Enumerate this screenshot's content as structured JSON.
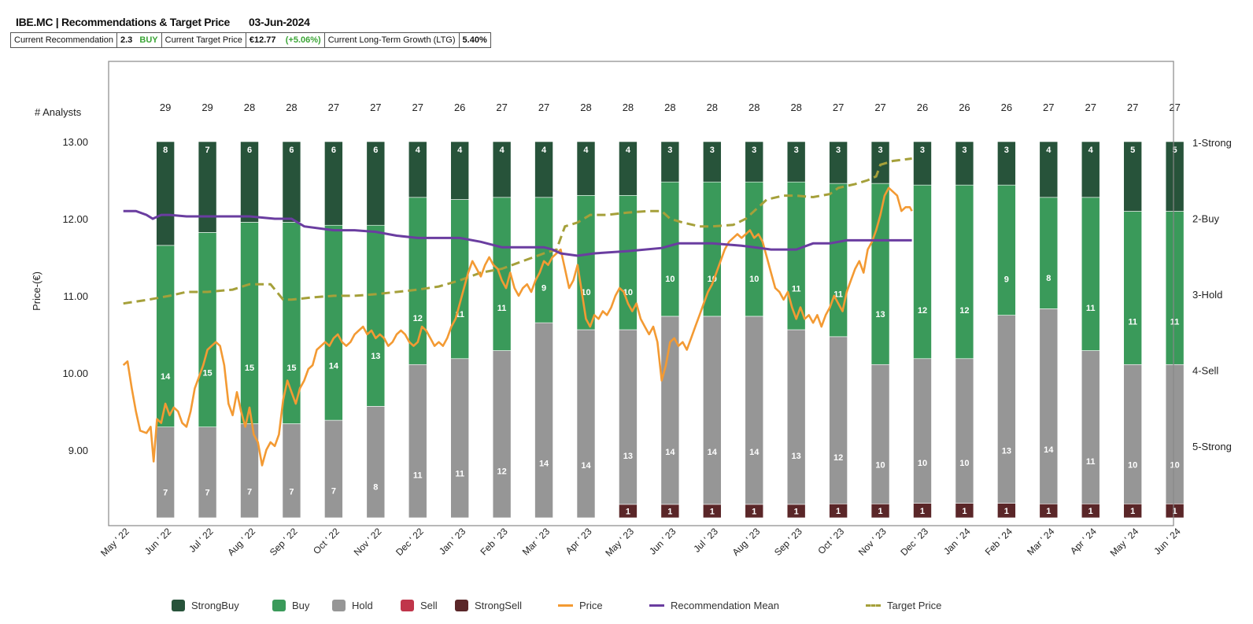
{
  "header": {
    "title": "IBE.MC | Recommendations & Target Price",
    "date": "03-Jun-2024"
  },
  "summary": {
    "rec_label": "Current Recommendation",
    "rec_value": "2.3",
    "rec_text": "BUY",
    "tp_label": "Current Target Price",
    "tp_value": "€12.77",
    "tp_change": "(+5.06%)",
    "ltg_label": "Current Long-Term Growth (LTG)",
    "ltg_value": "5.40%"
  },
  "colors": {
    "strongbuy": "#27533a",
    "buy": "#3a9a5a",
    "hold": "#969696",
    "sell": "#c0354a",
    "strongsell": "#5a2628",
    "price": "#f39a33",
    "mean": "#6a3da0",
    "target": "#a5a03a"
  },
  "legend": [
    {
      "label": "StrongBuy",
      "type": "box",
      "color": "#27533a"
    },
    {
      "label": "Buy",
      "type": "box",
      "color": "#3a9a5a"
    },
    {
      "label": "Hold",
      "type": "box",
      "color": "#969696"
    },
    {
      "label": "Sell",
      "type": "box",
      "color": "#c0354a"
    },
    {
      "label": "StrongSell",
      "type": "box",
      "color": "#5a2628"
    },
    {
      "label": "Price",
      "type": "line",
      "color": "#f39a33"
    },
    {
      "label": "Recommendation Mean",
      "type": "line",
      "color": "#6a3da0"
    },
    {
      "label": "Target Price",
      "type": "dash",
      "color": "#a5a03a"
    }
  ],
  "chart_data": {
    "type": "bar",
    "ylabel": "Price-(€)",
    "analysts_label": "# Analysts",
    "ylim": [
      8.12,
      13.0
    ],
    "y_ticks": [
      "13.00",
      "12.00",
      "11.00",
      "10.00",
      "9.00"
    ],
    "y_tick_values": [
      13,
      12,
      11,
      10,
      9
    ],
    "right_labels": [
      "1-Strong",
      "2-Buy",
      "3-Hold",
      "4-Sell",
      "5-Strong"
    ],
    "x_labels": [
      "May ' 22",
      "Jun ' 22",
      "Jul ' 22",
      "Aug ' 22",
      "Sep ' 22",
      "Oct ' 22",
      "Nov ' 22",
      "Dec ' 22",
      "Jan ' 23",
      "Feb ' 23",
      "Mar ' 23",
      "Apr ' 23",
      "May ' 23",
      "Jun ' 23",
      "Jul ' 23",
      "Aug ' 23",
      "Sep ' 23",
      "Oct ' 23",
      "Nov ' 23",
      "Dec ' 23",
      "Jan ' 24",
      "Feb ' 24",
      "Mar ' 24",
      "Apr ' 24",
      "May ' 24",
      "Jun ' 24"
    ],
    "bars": [
      {
        "analysts": "29",
        "strongbuy": 8,
        "buy": 14,
        "hold": 7,
        "sell": 0,
        "strongsell": 0
      },
      {
        "analysts": "29",
        "strongbuy": 7,
        "buy": 15,
        "hold": 7,
        "sell": 0,
        "strongsell": 0
      },
      {
        "analysts": "28",
        "strongbuy": 6,
        "buy": 15,
        "hold": 7,
        "sell": 0,
        "strongsell": 0
      },
      {
        "analysts": "28",
        "strongbuy": 6,
        "buy": 15,
        "hold": 7,
        "sell": 0,
        "strongsell": 0
      },
      {
        "analysts": "27",
        "strongbuy": 6,
        "buy": 14,
        "hold": 7,
        "sell": 0,
        "strongsell": 0
      },
      {
        "analysts": "27",
        "strongbuy": 6,
        "buy": 13,
        "hold": 8,
        "sell": 0,
        "strongsell": 0
      },
      {
        "analysts": "27",
        "strongbuy": 4,
        "buy": 12,
        "hold": 11,
        "sell": 0,
        "strongsell": 0
      },
      {
        "analysts": "26",
        "strongbuy": 4,
        "buy": 11,
        "hold": 11,
        "sell": 0,
        "strongsell": 0
      },
      {
        "analysts": "27",
        "strongbuy": 4,
        "buy": 11,
        "hold": 12,
        "sell": 0,
        "strongsell": 0
      },
      {
        "analysts": "27",
        "strongbuy": 4,
        "buy": 9,
        "hold": 14,
        "sell": 0,
        "strongsell": 0
      },
      {
        "analysts": "28",
        "strongbuy": 4,
        "buy": 10,
        "hold": 14,
        "sell": 0,
        "strongsell": 0
      },
      {
        "analysts": "28",
        "strongbuy": 4,
        "buy": 10,
        "hold": 13,
        "sell": 0,
        "strongsell": 1
      },
      {
        "analysts": "28",
        "strongbuy": 3,
        "buy": 10,
        "hold": 14,
        "sell": 0,
        "strongsell": 1
      },
      {
        "analysts": "28",
        "strongbuy": 3,
        "buy": 10,
        "hold": 14,
        "sell": 0,
        "strongsell": 1
      },
      {
        "analysts": "28",
        "strongbuy": 3,
        "buy": 10,
        "hold": 14,
        "sell": 0,
        "strongsell": 1
      },
      {
        "analysts": "28",
        "strongbuy": 3,
        "buy": 11,
        "hold": 13,
        "sell": 0,
        "strongsell": 1
      },
      {
        "analysts": "27",
        "strongbuy": 3,
        "buy": 11,
        "hold": 12,
        "sell": 0,
        "strongsell": 1
      },
      {
        "analysts": "27",
        "strongbuy": 3,
        "buy": 13,
        "hold": 10,
        "sell": 0,
        "strongsell": 1
      },
      {
        "analysts": "26",
        "strongbuy": 3,
        "buy": 12,
        "hold": 10,
        "sell": 0,
        "strongsell": 1
      },
      {
        "analysts": "26",
        "strongbuy": 3,
        "buy": 12,
        "hold": 10,
        "sell": 0,
        "strongsell": 1
      },
      {
        "analysts": "26",
        "strongbuy": 3,
        "buy": 9,
        "hold": 13,
        "sell": 0,
        "strongsell": 1
      },
      {
        "analysts": "27",
        "strongbuy": 4,
        "buy": 8,
        "hold": 14,
        "sell": 0,
        "strongsell": 1
      },
      {
        "analysts": "27",
        "strongbuy": 4,
        "buy": 11,
        "hold": 11,
        "sell": 0,
        "strongsell": 1
      },
      {
        "analysts": "27",
        "strongbuy": 5,
        "buy": 11,
        "hold": 10,
        "sell": 0,
        "strongsell": 1
      },
      {
        "analysts": "27",
        "strongbuy": 5,
        "buy": 11,
        "hold": 10,
        "sell": 0,
        "strongsell": 1
      }
    ],
    "price": [
      [
        0,
        10.1
      ],
      [
        0.1,
        10.15
      ],
      [
        0.2,
        9.8
      ],
      [
        0.3,
        9.5
      ],
      [
        0.4,
        9.25
      ],
      [
        0.55,
        9.22
      ],
      [
        0.65,
        9.3
      ],
      [
        0.72,
        8.85
      ],
      [
        0.8,
        9.4
      ],
      [
        0.9,
        9.35
      ],
      [
        1.0,
        9.6
      ],
      [
        1.1,
        9.45
      ],
      [
        1.2,
        9.55
      ],
      [
        1.3,
        9.5
      ],
      [
        1.4,
        9.35
      ],
      [
        1.5,
        9.3
      ],
      [
        1.6,
        9.5
      ],
      [
        1.7,
        9.8
      ],
      [
        1.8,
        9.95
      ],
      [
        1.9,
        10.1
      ],
      [
        2.0,
        10.3
      ],
      [
        2.1,
        10.35
      ],
      [
        2.2,
        10.4
      ],
      [
        2.3,
        10.35
      ],
      [
        2.4,
        10.1
      ],
      [
        2.5,
        9.6
      ],
      [
        2.6,
        9.45
      ],
      [
        2.7,
        9.75
      ],
      [
        2.8,
        9.5
      ],
      [
        2.9,
        9.3
      ],
      [
        3.0,
        9.55
      ],
      [
        3.1,
        9.2
      ],
      [
        3.2,
        9.1
      ],
      [
        3.3,
        8.8
      ],
      [
        3.4,
        9.0
      ],
      [
        3.5,
        9.1
      ],
      [
        3.6,
        9.05
      ],
      [
        3.7,
        9.2
      ],
      [
        3.8,
        9.65
      ],
      [
        3.9,
        9.9
      ],
      [
        4.0,
        9.75
      ],
      [
        4.1,
        9.6
      ],
      [
        4.2,
        9.8
      ],
      [
        4.3,
        9.9
      ],
      [
        4.4,
        10.05
      ],
      [
        4.5,
        10.1
      ],
      [
        4.6,
        10.3
      ],
      [
        4.7,
        10.35
      ],
      [
        4.8,
        10.4
      ],
      [
        4.9,
        10.35
      ],
      [
        5.0,
        10.45
      ],
      [
        5.1,
        10.5
      ],
      [
        5.2,
        10.4
      ],
      [
        5.3,
        10.35
      ],
      [
        5.4,
        10.4
      ],
      [
        5.5,
        10.5
      ],
      [
        5.6,
        10.55
      ],
      [
        5.7,
        10.6
      ],
      [
        5.8,
        10.5
      ],
      [
        5.9,
        10.55
      ],
      [
        6.0,
        10.45
      ],
      [
        6.1,
        10.5
      ],
      [
        6.2,
        10.45
      ],
      [
        6.3,
        10.35
      ],
      [
        6.4,
        10.4
      ],
      [
        6.5,
        10.5
      ],
      [
        6.6,
        10.55
      ],
      [
        6.7,
        10.5
      ],
      [
        6.8,
        10.4
      ],
      [
        6.9,
        10.35
      ],
      [
        7.0,
        10.4
      ],
      [
        7.1,
        10.6
      ],
      [
        7.2,
        10.55
      ],
      [
        7.3,
        10.45
      ],
      [
        7.4,
        10.35
      ],
      [
        7.5,
        10.4
      ],
      [
        7.6,
        10.35
      ],
      [
        7.7,
        10.45
      ],
      [
        7.8,
        10.6
      ],
      [
        7.9,
        10.7
      ],
      [
        8.0,
        10.9
      ],
      [
        8.1,
        11.1
      ],
      [
        8.2,
        11.3
      ],
      [
        8.3,
        11.45
      ],
      [
        8.4,
        11.35
      ],
      [
        8.5,
        11.25
      ],
      [
        8.6,
        11.4
      ],
      [
        8.7,
        11.5
      ],
      [
        8.8,
        11.4
      ],
      [
        8.9,
        11.35
      ],
      [
        9.0,
        11.2
      ],
      [
        9.1,
        11.1
      ],
      [
        9.2,
        11.3
      ],
      [
        9.3,
        11.1
      ],
      [
        9.4,
        11.0
      ],
      [
        9.5,
        11.1
      ],
      [
        9.6,
        11.15
      ],
      [
        9.7,
        11.05
      ],
      [
        9.8,
        11.2
      ],
      [
        9.9,
        11.3
      ],
      [
        10.0,
        11.45
      ],
      [
        10.1,
        11.4
      ],
      [
        10.2,
        11.5
      ],
      [
        10.3,
        11.55
      ],
      [
        10.4,
        11.6
      ],
      [
        10.5,
        11.35
      ],
      [
        10.6,
        11.1
      ],
      [
        10.7,
        11.2
      ],
      [
        10.8,
        11.4
      ],
      [
        10.9,
        11.05
      ],
      [
        11.0,
        10.7
      ],
      [
        11.1,
        10.6
      ],
      [
        11.2,
        10.75
      ],
      [
        11.3,
        10.7
      ],
      [
        11.4,
        10.8
      ],
      [
        11.5,
        10.75
      ],
      [
        11.6,
        10.85
      ],
      [
        11.7,
        11.0
      ],
      [
        11.8,
        11.1
      ],
      [
        11.9,
        11.05
      ],
      [
        12.0,
        10.9
      ],
      [
        12.1,
        10.8
      ],
      [
        12.2,
        10.9
      ],
      [
        12.3,
        10.7
      ],
      [
        12.4,
        10.6
      ],
      [
        12.5,
        10.5
      ],
      [
        12.6,
        10.6
      ],
      [
        12.7,
        10.4
      ],
      [
        12.8,
        9.9
      ],
      [
        12.9,
        10.1
      ],
      [
        13.0,
        10.4
      ],
      [
        13.1,
        10.45
      ],
      [
        13.2,
        10.35
      ],
      [
        13.3,
        10.4
      ],
      [
        13.4,
        10.3
      ],
      [
        13.5,
        10.45
      ],
      [
        13.6,
        10.6
      ],
      [
        13.7,
        10.75
      ],
      [
        13.8,
        10.9
      ],
      [
        13.9,
        11.05
      ],
      [
        14.0,
        11.15
      ],
      [
        14.1,
        11.3
      ],
      [
        14.2,
        11.45
      ],
      [
        14.3,
        11.6
      ],
      [
        14.4,
        11.7
      ],
      [
        14.5,
        11.75
      ],
      [
        14.6,
        11.8
      ],
      [
        14.7,
        11.75
      ],
      [
        14.8,
        11.8
      ],
      [
        14.9,
        11.85
      ],
      [
        15.0,
        11.75
      ],
      [
        15.1,
        11.8
      ],
      [
        15.2,
        11.7
      ],
      [
        15.3,
        11.5
      ],
      [
        15.4,
        11.3
      ],
      [
        15.5,
        11.1
      ],
      [
        15.6,
        11.05
      ],
      [
        15.7,
        10.95
      ],
      [
        15.8,
        11.05
      ],
      [
        15.9,
        10.85
      ],
      [
        16.0,
        10.7
      ],
      [
        16.1,
        10.85
      ],
      [
        16.2,
        10.7
      ],
      [
        16.3,
        10.75
      ],
      [
        16.4,
        10.65
      ],
      [
        16.5,
        10.75
      ],
      [
        16.6,
        10.6
      ],
      [
        16.7,
        10.75
      ],
      [
        16.8,
        10.85
      ],
      [
        16.9,
        11.0
      ],
      [
        17.0,
        10.9
      ],
      [
        17.1,
        10.8
      ],
      [
        17.2,
        11.05
      ],
      [
        17.3,
        11.2
      ],
      [
        17.4,
        11.35
      ],
      [
        17.5,
        11.45
      ],
      [
        17.6,
        11.3
      ],
      [
        17.7,
        11.6
      ],
      [
        17.8,
        11.7
      ],
      [
        17.9,
        11.85
      ],
      [
        18.0,
        12.05
      ],
      [
        18.1,
        12.3
      ],
      [
        18.2,
        12.4
      ],
      [
        18.3,
        12.35
      ],
      [
        18.4,
        12.3
      ],
      [
        18.5,
        12.1
      ],
      [
        18.6,
        12.15
      ],
      [
        18.7,
        12.15
      ],
      [
        18.75,
        12.1
      ]
    ],
    "mean": [
      [
        0,
        12.1
      ],
      [
        0.3,
        12.1
      ],
      [
        0.55,
        12.05
      ],
      [
        0.7,
        12.0
      ],
      [
        0.9,
        12.05
      ],
      [
        1.1,
        12.05
      ],
      [
        1.5,
        12.03
      ],
      [
        2.0,
        12.03
      ],
      [
        2.7,
        12.03
      ],
      [
        3.0,
        12.03
      ],
      [
        3.6,
        12.0
      ],
      [
        4.0,
        12.0
      ],
      [
        4.3,
        11.9
      ],
      [
        5.0,
        11.85
      ],
      [
        5.5,
        11.85
      ],
      [
        6.0,
        11.83
      ],
      [
        6.5,
        11.78
      ],
      [
        7.0,
        11.75
      ],
      [
        8.0,
        11.75
      ],
      [
        8.5,
        11.7
      ],
      [
        9.0,
        11.63
      ],
      [
        10.0,
        11.63
      ],
      [
        10.2,
        11.6
      ],
      [
        10.4,
        11.55
      ],
      [
        10.8,
        11.52
      ],
      [
        11.2,
        11.55
      ],
      [
        12.0,
        11.58
      ],
      [
        12.8,
        11.62
      ],
      [
        13.2,
        11.68
      ],
      [
        14.0,
        11.68
      ],
      [
        14.7,
        11.65
      ],
      [
        15.0,
        11.63
      ],
      [
        15.4,
        11.6
      ],
      [
        16.0,
        11.6
      ],
      [
        16.4,
        11.68
      ],
      [
        16.8,
        11.68
      ],
      [
        17.2,
        11.72
      ],
      [
        18.0,
        11.72
      ],
      [
        18.75,
        11.72
      ]
    ],
    "target": [
      [
        0,
        10.9
      ],
      [
        0.6,
        10.95
      ],
      [
        1.1,
        11.0
      ],
      [
        1.5,
        11.05
      ],
      [
        2.0,
        11.05
      ],
      [
        2.6,
        11.08
      ],
      [
        3.0,
        11.15
      ],
      [
        3.5,
        11.15
      ],
      [
        3.8,
        10.95
      ],
      [
        4.0,
        10.95
      ],
      [
        4.5,
        10.98
      ],
      [
        5.0,
        11.0
      ],
      [
        5.5,
        11.0
      ],
      [
        6.0,
        11.02
      ],
      [
        6.5,
        11.05
      ],
      [
        7.0,
        11.08
      ],
      [
        7.5,
        11.12
      ],
      [
        8.0,
        11.2
      ],
      [
        8.5,
        11.3
      ],
      [
        9.0,
        11.35
      ],
      [
        9.5,
        11.45
      ],
      [
        10.0,
        11.55
      ],
      [
        10.3,
        11.6
      ],
      [
        10.5,
        11.9
      ],
      [
        10.8,
        11.95
      ],
      [
        11.1,
        12.05
      ],
      [
        11.5,
        12.05
      ],
      [
        12.0,
        12.08
      ],
      [
        12.5,
        12.1
      ],
      [
        12.8,
        12.1
      ],
      [
        13.0,
        12.0
      ],
      [
        13.3,
        11.95
      ],
      [
        13.7,
        11.9
      ],
      [
        14.0,
        11.9
      ],
      [
        14.5,
        11.92
      ],
      [
        14.8,
        12.0
      ],
      [
        15.0,
        12.1
      ],
      [
        15.3,
        12.25
      ],
      [
        15.7,
        12.3
      ],
      [
        16.0,
        12.3
      ],
      [
        16.4,
        12.28
      ],
      [
        16.8,
        12.32
      ],
      [
        17.0,
        12.4
      ],
      [
        17.4,
        12.45
      ],
      [
        17.7,
        12.5
      ],
      [
        17.9,
        12.55
      ],
      [
        18.0,
        12.7
      ],
      [
        18.3,
        12.75
      ],
      [
        18.75,
        12.78
      ]
    ]
  }
}
